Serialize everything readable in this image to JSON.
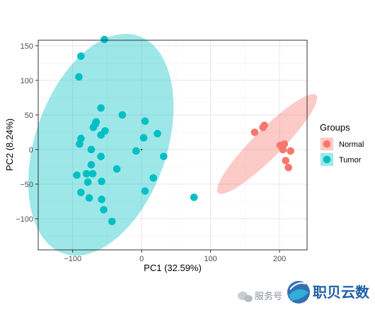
{
  "chart_data": {
    "type": "scatter",
    "xlabel": "PC1 (32.59%)",
    "ylabel": "PC2 (8.24%)",
    "xlim": [
      -150,
      240
    ],
    "ylim": [
      -145,
      158
    ],
    "xticks": [
      -100,
      0,
      100,
      200
    ],
    "yticks": [
      -100,
      -50,
      0,
      50,
      100,
      150
    ],
    "x_tick_labels": [
      "−100",
      "0",
      "100",
      "200"
    ],
    "y_tick_labels": [
      "−100",
      "−50",
      "0",
      "50",
      "100",
      "150"
    ],
    "grid": true,
    "legend_placement": "right",
    "legend_title": "Groups",
    "series": [
      {
        "name": "Normal",
        "color": "#F8766D",
        "ellipse": {
          "cx": 182,
          "cy": 8,
          "rx": 98,
          "ry": 20,
          "angle_deg": -45
        },
        "points": [
          {
            "x": 164,
            "y": 25
          },
          {
            "x": 178,
            "y": 35
          },
          {
            "x": 176,
            "y": 32
          },
          {
            "x": 201,
            "y": 6
          },
          {
            "x": 207,
            "y": 8
          },
          {
            "x": 205,
            "y": 0
          },
          {
            "x": 216,
            "y": -2
          },
          {
            "x": 209,
            "y": -16
          },
          {
            "x": 213,
            "y": -26
          }
        ]
      },
      {
        "name": "Tumor",
        "color": "#00BFC4",
        "ellipse": {
          "cx": -59,
          "cy": 7,
          "rx": 163,
          "ry": 93,
          "angle_deg": -71
        },
        "points": [
          {
            "x": -54,
            "y": 159
          },
          {
            "x": -88,
            "y": 135
          },
          {
            "x": -91,
            "y": 105
          },
          {
            "x": -59,
            "y": 60
          },
          {
            "x": -28,
            "y": 50
          },
          {
            "x": 5,
            "y": 41
          },
          {
            "x": -66,
            "y": 40
          },
          {
            "x": -67,
            "y": 37
          },
          {
            "x": -70,
            "y": 32
          },
          {
            "x": -53,
            "y": 27
          },
          {
            "x": -59,
            "y": 21
          },
          {
            "x": 23,
            "y": 23
          },
          {
            "x": 3,
            "y": 17
          },
          {
            "x": -88,
            "y": 16
          },
          {
            "x": -90,
            "y": 8
          },
          {
            "x": -73,
            "y": 0
          },
          {
            "x": -8,
            "y": -2
          },
          {
            "x": -59,
            "y": -10
          },
          {
            "x": 32,
            "y": -10
          },
          {
            "x": -73,
            "y": -22
          },
          {
            "x": -36,
            "y": -28
          },
          {
            "x": -94,
            "y": -37
          },
          {
            "x": -80,
            "y": -35
          },
          {
            "x": -71,
            "y": -35
          },
          {
            "x": 17,
            "y": -41
          },
          {
            "x": -78,
            "y": -47
          },
          {
            "x": -58,
            "y": -46
          },
          {
            "x": -88,
            "y": -62
          },
          {
            "x": 5,
            "y": -60
          },
          {
            "x": -76,
            "y": -70
          },
          {
            "x": -58,
            "y": -72
          },
          {
            "x": 76,
            "y": -69
          },
          {
            "x": -55,
            "y": -87
          },
          {
            "x": -43,
            "y": -104
          }
        ]
      }
    ]
  },
  "watermark": {
    "service_text": "服务号",
    "brand_text": "职贝云数"
  }
}
